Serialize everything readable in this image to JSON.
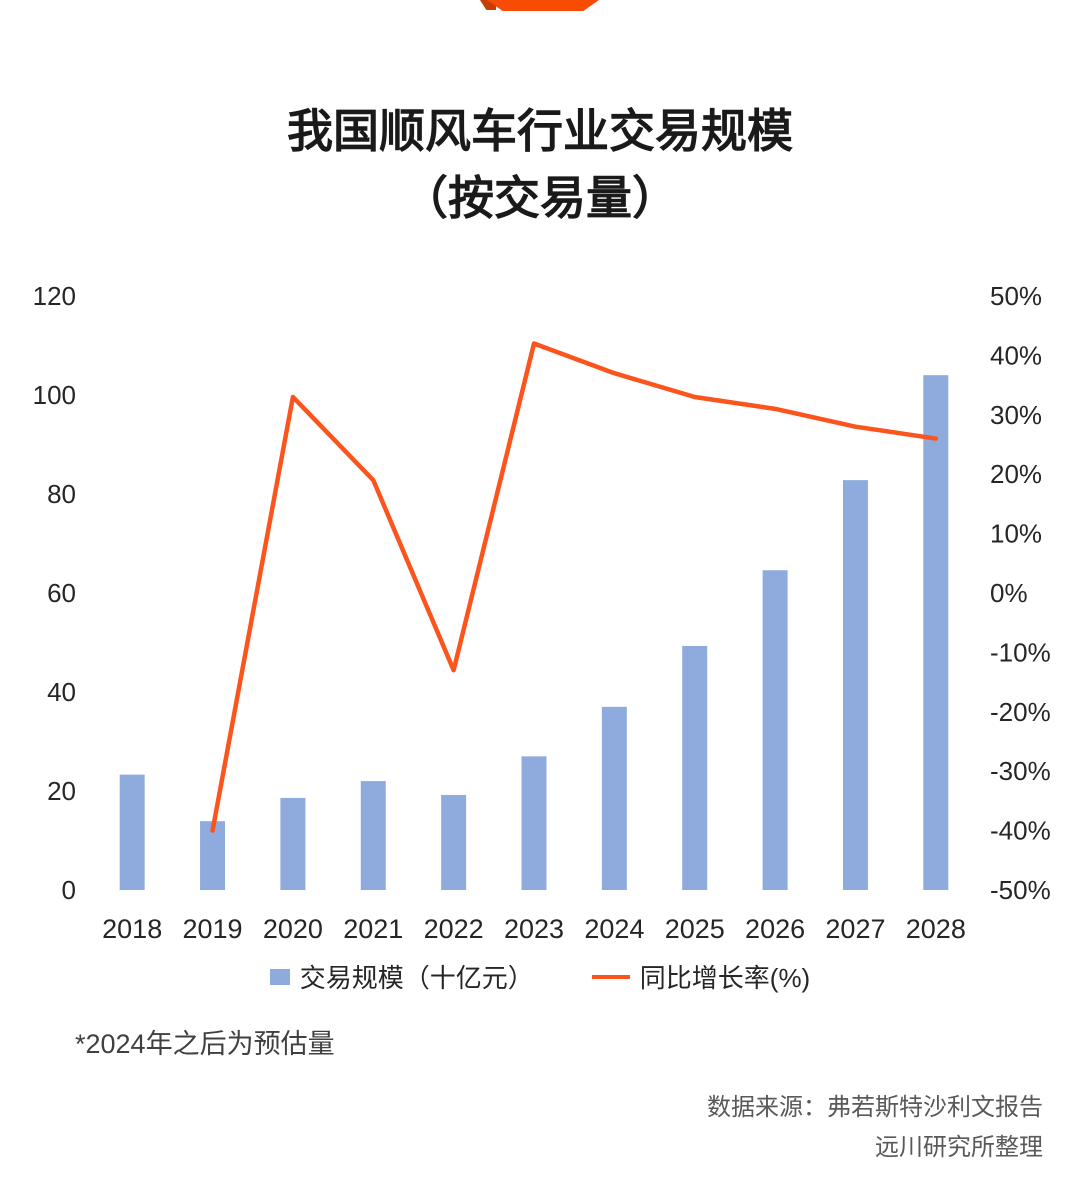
{
  "page": {
    "title_line1": "我国顺风车行业交易规模",
    "title_line2": "（按交易量）",
    "footnote": "*2024年之后为预估量",
    "source_line1": "数据来源：弗若斯特沙利文报告",
    "source_line2": "远川研究所整理"
  },
  "colors": {
    "bar": "#8FAADC",
    "line": "#FB541C",
    "banner": "#F84B04",
    "banner_fold": "#C53E00",
    "axis_text": "#262626",
    "muted_text": "#595959"
  },
  "chart_data": {
    "type": "bar",
    "subtype": "combo-bar-line",
    "title": "我国顺风车行业交易规模（按交易量）",
    "categories": [
      "2018",
      "2019",
      "2020",
      "2021",
      "2022",
      "2023",
      "2024",
      "2025",
      "2026",
      "2027",
      "2028"
    ],
    "series": [
      {
        "name": "交易规模（十亿元）",
        "type": "bar",
        "axis": "left",
        "values": [
          23.3,
          13.9,
          18.6,
          22,
          19.2,
          27,
          37,
          49.3,
          64.6,
          82.8,
          104
        ]
      },
      {
        "name": "同比增长率(%)",
        "type": "line",
        "axis": "right",
        "values": [
          null,
          -40,
          33,
          19,
          -13,
          42,
          37,
          33,
          31,
          28,
          26
        ]
      }
    ],
    "left_axis": {
      "min": 0,
      "max": 120,
      "step": 20,
      "ticks": [
        "0",
        "20",
        "40",
        "60",
        "80",
        "100",
        "120"
      ]
    },
    "right_axis": {
      "min": -50,
      "max": 50,
      "step": 10,
      "ticks": [
        "-50%",
        "-40%",
        "-30%",
        "-20%",
        "-10%",
        "0%",
        "10%",
        "20%",
        "30%",
        "40%",
        "50%"
      ]
    },
    "grid": false,
    "legend_position": "bottom",
    "note": "*2024年之后为预估量"
  }
}
